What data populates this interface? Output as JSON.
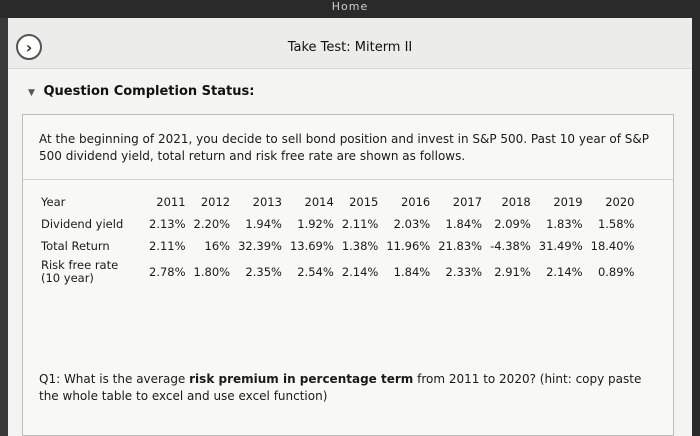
{
  "topbar": {
    "text": "Home"
  },
  "header": {
    "title": "Take Test: Miterm II",
    "nav_icon": "chevron-right-icon"
  },
  "status": {
    "label": "Question Completion Status:"
  },
  "question": {
    "intro": "At the beginning of 2021, you decide to sell bond position and invest in S&P 500. Past 10 year of S&P 500 dividend yield, total return and risk free rate are shown as follows.",
    "table": {
      "header_label": "Year",
      "years": [
        "2011",
        "2012",
        "2013",
        "2014",
        "2015",
        "2016",
        "2017",
        "2018",
        "2019",
        "2020"
      ],
      "rows": [
        {
          "label": "Dividend yield",
          "values": [
            "2.13%",
            "2.20%",
            "1.94%",
            "1.92%",
            "2.11%",
            "2.03%",
            "1.84%",
            "2.09%",
            "1.83%",
            "1.58%"
          ]
        },
        {
          "label": "Total Return",
          "values": [
            "2.11%",
            "16%",
            "32.39%",
            "13.69%",
            "1.38%",
            "11.96%",
            "21.83%",
            "-4.38%",
            "31.49%",
            "18.40%"
          ]
        },
        {
          "label": "Risk free rate (10 year)",
          "values": [
            "2.78%",
            "1.80%",
            "2.35%",
            "2.54%",
            "2.14%",
            "1.84%",
            "2.33%",
            "2.91%",
            "2.14%",
            "0.89%"
          ]
        }
      ]
    },
    "q1": {
      "prefix": "Q1: What is the average ",
      "bold": "risk premium in percentage term",
      "suffix": " from 2011 to 2020? (hint: copy paste the whole table to excel and use excel function)"
    }
  }
}
